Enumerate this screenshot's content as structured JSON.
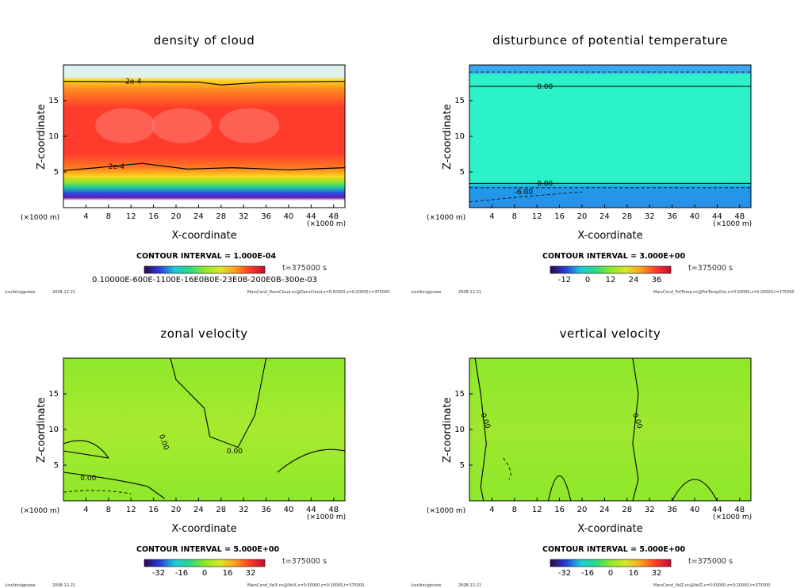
{
  "footer_program": "/usr/bin/gpview",
  "footer_date": "2008-12-21",
  "x_unit": "(×1000 m)",
  "z_unit": "(×1000 m)",
  "xlabel": "X-coordinate",
  "ylabel": "Z-coordinate",
  "time": "t=375000  s",
  "chart_data": [
    {
      "type": "heatmap",
      "title": "density of cloud",
      "xlabel": "X-coordinate",
      "ylabel": "Z-coordinate",
      "xticks": [
        4,
        8,
        12,
        16,
        20,
        24,
        28,
        32,
        36,
        40,
        44,
        48
      ],
      "yticks": [
        5,
        10,
        15
      ],
      "xlim": [
        0,
        50
      ],
      "ylim": [
        0,
        20
      ],
      "contour_labels": [
        "2e-4",
        "2e-4"
      ],
      "contour_interval": "CONTOUR INTERVAL = 1.000E-04",
      "colorbar_text": "0.10000E-600E-1100E-16E0B0E-23E0B-200E0B-300e-03",
      "footer_file": "MarsCond_DensCloud.nc@DensCloud,x=0:50000,z=0:20000,t=375000",
      "colors": [
        "#ff3b2b",
        "#ff8a20",
        "#ffd21a",
        "#8ee82a",
        "#1ec8a0",
        "#2848e8",
        "#6a1aa0"
      ]
    },
    {
      "type": "heatmap",
      "title": "disturbunce of potential temperature",
      "xlabel": "X-coordinate",
      "ylabel": "Z-coordinate",
      "xticks": [
        4,
        8,
        12,
        16,
        20,
        24,
        28,
        32,
        36,
        40,
        44,
        48
      ],
      "yticks": [
        5,
        10,
        15
      ],
      "xlim": [
        0,
        50
      ],
      "ylim": [
        0,
        20
      ],
      "contour_labels": [
        "0.00",
        "0.00",
        "-6.00"
      ],
      "contour_interval": "CONTOUR INTERVAL = 3.000E+00",
      "colorbar_ticks": [
        "-12",
        "0",
        "12",
        "24",
        "36"
      ],
      "footer_file": "MarsCond_PotTemp.nc@PotTempDist,x=0:50000,z=0:20000,t=375000",
      "colors": [
        "#2bf2c8",
        "#1e9be8",
        "#3aa8f0"
      ]
    },
    {
      "type": "heatmap",
      "title": "zonal velocity",
      "xlabel": "X-coordinate",
      "ylabel": "Z-coordinate",
      "xticks": [
        4,
        8,
        12,
        16,
        20,
        24,
        28,
        32,
        36,
        40,
        44,
        48
      ],
      "yticks": [
        5,
        10,
        15
      ],
      "xlim": [
        0,
        50
      ],
      "ylim": [
        0,
        20
      ],
      "contour_labels": [
        "0.00",
        "0.00",
        "0.00"
      ],
      "contour_interval": "CONTOUR INTERVAL = 5.000E+00",
      "colorbar_ticks": [
        "-32",
        "-16",
        "0",
        "16",
        "32"
      ],
      "footer_file": "MarsCond_VelX.nc@VelX,x=0:50000,z=0:20000,t=375000",
      "colors": [
        "#8ee82a",
        "#a8ea30",
        "#3ddc7c"
      ]
    },
    {
      "type": "heatmap",
      "title": "vertical velocity",
      "xlabel": "X-coordinate",
      "ylabel": "Z-coordinate",
      "xticks": [
        4,
        8,
        12,
        16,
        20,
        24,
        28,
        32,
        36,
        40,
        44,
        48
      ],
      "yticks": [
        5,
        10,
        15
      ],
      "xlim": [
        0,
        50
      ],
      "ylim": [
        0,
        20
      ],
      "contour_labels": [
        "0.00",
        "0.00"
      ],
      "contour_interval": "CONTOUR INTERVAL = 5.000E+00",
      "colorbar_ticks": [
        "-32",
        "-16",
        "0",
        "16",
        "32"
      ],
      "footer_file": "MarsCond_VelZ.nc@VelZ,x=0:50000,z=0:20000,t=375000",
      "colors": [
        "#8ee82a",
        "#9fe830",
        "#6ee040"
      ]
    }
  ]
}
